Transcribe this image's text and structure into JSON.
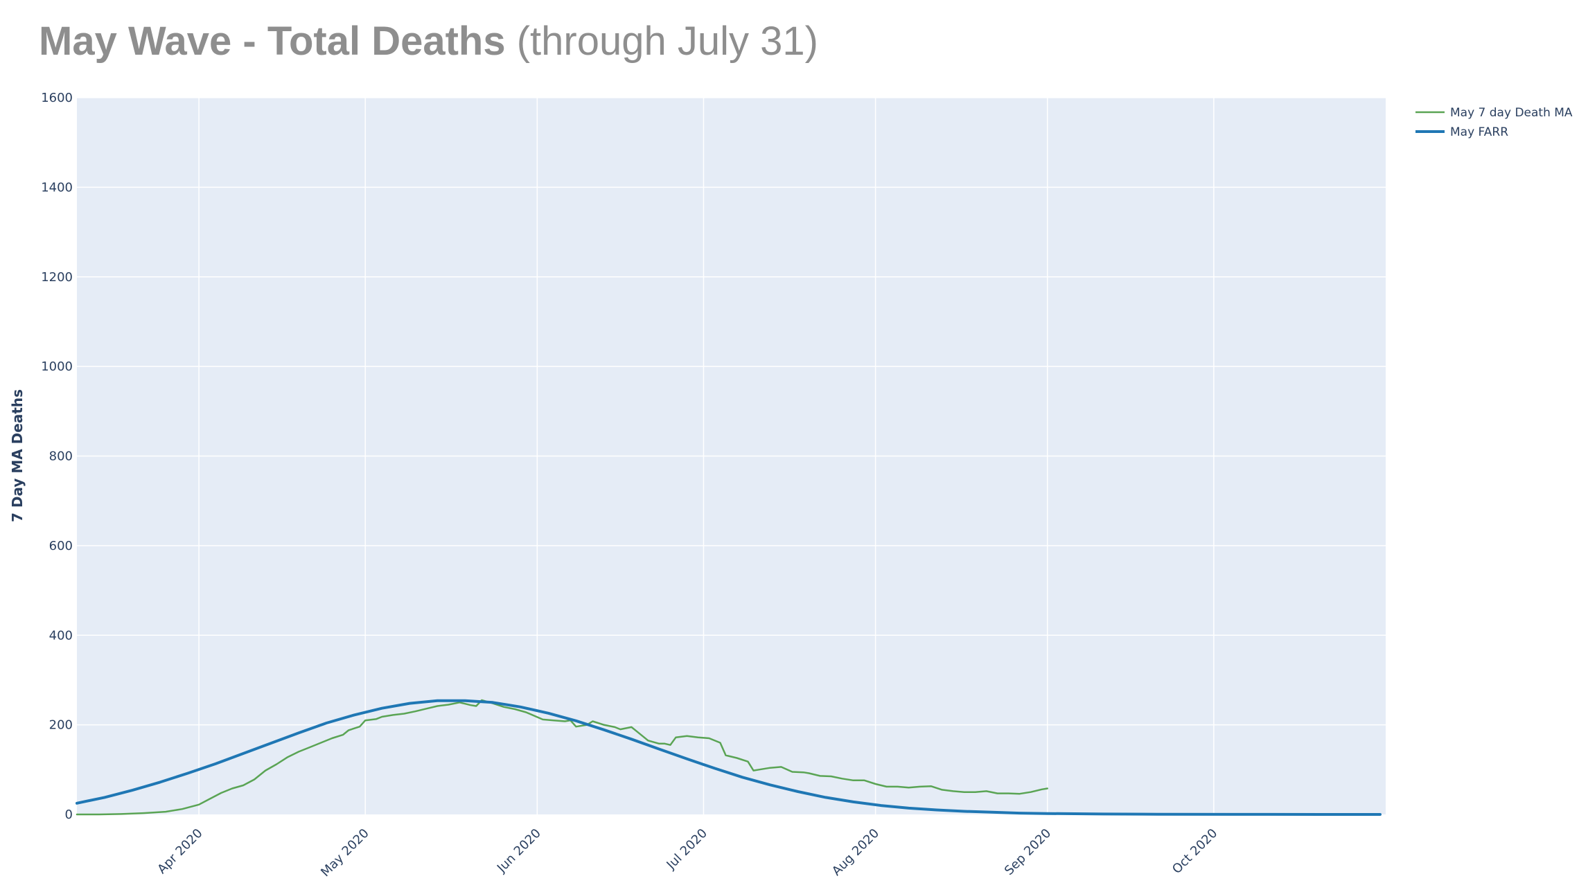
{
  "title": {
    "main": "May Wave - Total Deaths",
    "sub": " (through July 31)"
  },
  "colors": {
    "plot_bg": "#e5ecf6",
    "grid": "#ffffff",
    "ma": "#5aa454",
    "farr": "#1f77b4",
    "text": "#2a3f5f"
  },
  "chart_data": {
    "type": "line",
    "title": "May Wave - Total Deaths (through July 31)",
    "ylabel": "7 Day MA Deaths",
    "xlabel": "",
    "ylim": [
      0,
      1600
    ],
    "xlim": [
      "2020-03-10",
      "2020-11-01"
    ],
    "yticks": [
      0,
      200,
      400,
      600,
      800,
      1000,
      1200,
      1400,
      1600
    ],
    "xticks": [
      {
        "date": "2020-04-01",
        "label": "Apr 2020"
      },
      {
        "date": "2020-05-01",
        "label": "May 2020"
      },
      {
        "date": "2020-06-01",
        "label": "Jun 2020"
      },
      {
        "date": "2020-07-01",
        "label": "Jul 2020"
      },
      {
        "date": "2020-08-01",
        "label": "Aug 2020"
      },
      {
        "date": "2020-09-01",
        "label": "Sep 2020"
      },
      {
        "date": "2020-10-01",
        "label": "Oct 2020"
      }
    ],
    "grid": true,
    "legend_position": "top-right",
    "series": [
      {
        "name": "May 7 day Death MA",
        "color": "#5aa454",
        "width": 2.5,
        "points": [
          [
            "2020-03-10",
            0
          ],
          [
            "2020-03-14",
            0
          ],
          [
            "2020-03-18",
            1
          ],
          [
            "2020-03-22",
            3
          ],
          [
            "2020-03-26",
            6
          ],
          [
            "2020-03-29",
            12
          ],
          [
            "2020-04-01",
            22
          ],
          [
            "2020-04-03",
            35
          ],
          [
            "2020-04-05",
            48
          ],
          [
            "2020-04-07",
            58
          ],
          [
            "2020-04-09",
            65
          ],
          [
            "2020-04-11",
            78
          ],
          [
            "2020-04-13",
            98
          ],
          [
            "2020-04-15",
            112
          ],
          [
            "2020-04-17",
            128
          ],
          [
            "2020-04-19",
            140
          ],
          [
            "2020-04-21",
            150
          ],
          [
            "2020-04-23",
            160
          ],
          [
            "2020-04-25",
            170
          ],
          [
            "2020-04-27",
            178
          ],
          [
            "2020-04-28",
            188
          ],
          [
            "2020-04-30",
            196
          ],
          [
            "2020-05-01",
            210
          ],
          [
            "2020-05-03",
            213
          ],
          [
            "2020-05-04",
            218
          ],
          [
            "2020-05-06",
            222
          ],
          [
            "2020-05-08",
            225
          ],
          [
            "2020-05-10",
            230
          ],
          [
            "2020-05-12",
            236
          ],
          [
            "2020-05-14",
            242
          ],
          [
            "2020-05-16",
            245
          ],
          [
            "2020-05-18",
            250
          ],
          [
            "2020-05-19",
            247
          ],
          [
            "2020-05-20",
            244
          ],
          [
            "2020-05-21",
            242
          ],
          [
            "2020-05-22",
            255
          ],
          [
            "2020-05-24",
            248
          ],
          [
            "2020-05-26",
            240
          ],
          [
            "2020-05-28",
            235
          ],
          [
            "2020-05-30",
            228
          ],
          [
            "2020-06-02",
            212
          ],
          [
            "2020-06-04",
            210
          ],
          [
            "2020-06-06",
            208
          ],
          [
            "2020-06-07",
            210
          ],
          [
            "2020-06-08",
            196
          ],
          [
            "2020-06-10",
            200
          ],
          [
            "2020-06-11",
            208
          ],
          [
            "2020-06-13",
            200
          ],
          [
            "2020-06-15",
            195
          ],
          [
            "2020-06-16",
            190
          ],
          [
            "2020-06-18",
            195
          ],
          [
            "2020-06-19",
            185
          ],
          [
            "2020-06-21",
            165
          ],
          [
            "2020-06-23",
            158
          ],
          [
            "2020-06-24",
            158
          ],
          [
            "2020-06-25",
            155
          ],
          [
            "2020-06-26",
            172
          ],
          [
            "2020-06-28",
            175
          ],
          [
            "2020-06-30",
            172
          ],
          [
            "2020-07-02",
            170
          ],
          [
            "2020-07-04",
            160
          ],
          [
            "2020-07-05",
            132
          ],
          [
            "2020-07-07",
            126
          ],
          [
            "2020-07-09",
            118
          ],
          [
            "2020-07-10",
            98
          ],
          [
            "2020-07-11",
            100
          ],
          [
            "2020-07-13",
            104
          ],
          [
            "2020-07-15",
            106
          ],
          [
            "2020-07-17",
            95
          ],
          [
            "2020-07-19",
            94
          ],
          [
            "2020-07-20",
            92
          ],
          [
            "2020-07-22",
            86
          ],
          [
            "2020-07-24",
            85
          ],
          [
            "2020-07-26",
            80
          ],
          [
            "2020-07-28",
            76
          ],
          [
            "2020-07-30",
            76
          ],
          [
            "2020-08-01",
            68
          ],
          [
            "2020-08-03",
            62
          ],
          [
            "2020-08-05",
            62
          ],
          [
            "2020-08-07",
            60
          ],
          [
            "2020-08-09",
            62
          ],
          [
            "2020-08-11",
            63
          ],
          [
            "2020-08-13",
            55
          ],
          [
            "2020-08-15",
            52
          ],
          [
            "2020-08-17",
            50
          ],
          [
            "2020-08-19",
            50
          ],
          [
            "2020-08-21",
            52
          ],
          [
            "2020-08-23",
            47
          ],
          [
            "2020-08-25",
            47
          ],
          [
            "2020-08-27",
            46
          ],
          [
            "2020-08-29",
            50
          ],
          [
            "2020-08-31",
            56
          ],
          [
            "2020-09-01",
            58
          ]
        ]
      },
      {
        "name": "May FARR",
        "color": "#1f77b4",
        "width": 4,
        "points": [
          [
            "2020-03-10",
            25
          ],
          [
            "2020-03-15",
            38
          ],
          [
            "2020-03-20",
            54
          ],
          [
            "2020-03-25",
            72
          ],
          [
            "2020-03-30",
            92
          ],
          [
            "2020-04-04",
            113
          ],
          [
            "2020-04-09",
            136
          ],
          [
            "2020-04-14",
            159
          ],
          [
            "2020-04-19",
            182
          ],
          [
            "2020-04-24",
            204
          ],
          [
            "2020-04-29",
            222
          ],
          [
            "2020-05-04",
            237
          ],
          [
            "2020-05-09",
            248
          ],
          [
            "2020-05-14",
            254
          ],
          [
            "2020-05-19",
            254
          ],
          [
            "2020-05-24",
            250
          ],
          [
            "2020-05-29",
            240
          ],
          [
            "2020-06-03",
            226
          ],
          [
            "2020-06-08",
            209
          ],
          [
            "2020-06-13",
            189
          ],
          [
            "2020-06-18",
            168
          ],
          [
            "2020-06-23",
            146
          ],
          [
            "2020-06-28",
            124
          ],
          [
            "2020-07-03",
            103
          ],
          [
            "2020-07-08",
            83
          ],
          [
            "2020-07-13",
            66
          ],
          [
            "2020-07-18",
            51
          ],
          [
            "2020-07-23",
            38
          ],
          [
            "2020-07-28",
            28
          ],
          [
            "2020-08-02",
            20
          ],
          [
            "2020-08-07",
            14
          ],
          [
            "2020-08-12",
            10
          ],
          [
            "2020-08-17",
            7
          ],
          [
            "2020-08-22",
            5
          ],
          [
            "2020-08-27",
            3
          ],
          [
            "2020-09-01",
            2
          ],
          [
            "2020-09-11",
            1
          ],
          [
            "2020-09-21",
            0.5
          ],
          [
            "2020-10-11",
            0.2
          ],
          [
            "2020-10-31",
            0
          ]
        ]
      }
    ]
  }
}
